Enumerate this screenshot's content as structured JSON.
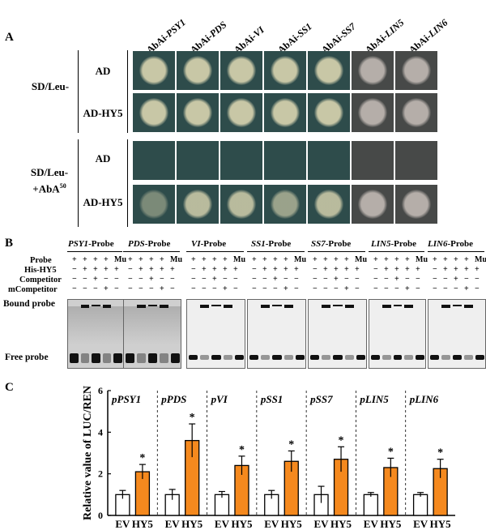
{
  "panels": {
    "A": "A",
    "B": "B",
    "C": "C"
  },
  "panel_a": {
    "columns": [
      {
        "prefix": "AbAi-",
        "gene": "PSY1"
      },
      {
        "prefix": "AbAi-",
        "gene": "PDS"
      },
      {
        "prefix": "AbAi-",
        "gene": "VI"
      },
      {
        "prefix": "AbAi-",
        "gene": "SS1"
      },
      {
        "prefix": "AbAi-",
        "gene": "SS7"
      },
      {
        "prefix": "AbAi-",
        "gene": "LIN5"
      },
      {
        "prefix": "AbAi-",
        "gene": "LIN6"
      }
    ],
    "conditions": [
      {
        "line1": "SD/Leu-",
        "line2": "",
        "sup": ""
      },
      {
        "line1": "SD/Leu-",
        "line2": "+AbA",
        "sup": "50"
      }
    ],
    "rows": [
      "AD",
      "AD-HY5",
      "AD",
      "AD-HY5"
    ],
    "colony_growth": [
      [
        1,
        1,
        1,
        1,
        1,
        1,
        1
      ],
      [
        1,
        1,
        1,
        1,
        1,
        1,
        1
      ],
      [
        0,
        0,
        0,
        0,
        0,
        0,
        0
      ],
      [
        0.5,
        0.9,
        0.9,
        0.7,
        0.9,
        1,
        1
      ]
    ],
    "colors": {
      "plate": "#2e4c4b",
      "plate_gray": "#474948",
      "colony": "#c8c7a6",
      "colony_gray": "#b5aea9"
    }
  },
  "panel_b": {
    "probes": [
      {
        "gene": "PSY1",
        "suffix": "-Probe"
      },
      {
        "gene": "PDS",
        "suffix": "-Probe"
      },
      {
        "gene": "VI",
        "suffix": "-Probe"
      },
      {
        "gene": "SS1",
        "suffix": "-Probe"
      },
      {
        "gene": "SS7",
        "suffix": "-Probe"
      },
      {
        "gene": "LIN5",
        "suffix": "-Probe"
      },
      {
        "gene": "LIN6",
        "suffix": "-Probe"
      }
    ],
    "row_labels": [
      "Probe",
      "His-HY5",
      "Competitor",
      "mCompetitor"
    ],
    "signs": [
      [
        "+",
        "+",
        "+",
        "+",
        "Mu"
      ],
      [
        "−",
        "+",
        "+",
        "+",
        "+"
      ],
      [
        "−",
        "−",
        "+",
        "−",
        "−"
      ],
      [
        "−",
        "−",
        "−",
        "+",
        "−"
      ]
    ],
    "bound_label": "Bound probe",
    "free_label": "Free probe"
  },
  "panel_c": {
    "chart_data": {
      "type": "bar",
      "ylabel": "Relative value of LUC/REN",
      "ylim": [
        0,
        6
      ],
      "yticks": [
        0,
        2,
        4,
        6
      ],
      "categories": [
        "EV",
        "HY5"
      ],
      "groups": [
        {
          "name": "pPSY1",
          "values": [
            1.0,
            2.1
          ],
          "errors": [
            0.2,
            0.35
          ]
        },
        {
          "name": "pPDS",
          "values": [
            1.0,
            3.6
          ],
          "errors": [
            0.25,
            0.8
          ]
        },
        {
          "name": "pVI",
          "values": [
            1.0,
            2.4
          ],
          "errors": [
            0.15,
            0.45
          ]
        },
        {
          "name": "pSS1",
          "values": [
            1.0,
            2.6
          ],
          "errors": [
            0.2,
            0.5
          ]
        },
        {
          "name": "pSS7",
          "values": [
            1.0,
            2.7
          ],
          "errors": [
            0.4,
            0.6
          ]
        },
        {
          "name": "pLIN5",
          "values": [
            1.0,
            2.3
          ],
          "errors": [
            0.1,
            0.45
          ]
        },
        {
          "name": "pLIN6",
          "values": [
            1.0,
            2.25
          ],
          "errors": [
            0.1,
            0.45
          ]
        }
      ],
      "significance": "*",
      "colors": {
        "EV": "#ffffff",
        "HY5": "#f5891e"
      }
    }
  }
}
